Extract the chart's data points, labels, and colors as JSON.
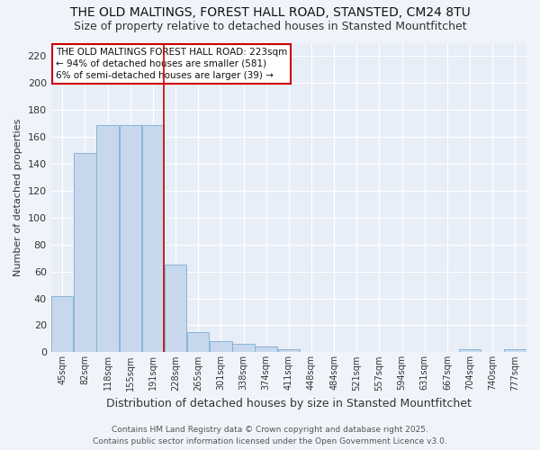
{
  "title": "THE OLD MALTINGS, FOREST HALL ROAD, STANSTED, CM24 8TU",
  "subtitle": "Size of property relative to detached houses in Stansted Mountfitchet",
  "xlabel": "Distribution of detached houses by size in Stansted Mountfitchet",
  "ylabel": "Number of detached properties",
  "categories": [
    "45sqm",
    "82sqm",
    "118sqm",
    "155sqm",
    "191sqm",
    "228sqm",
    "265sqm",
    "301sqm",
    "338sqm",
    "374sqm",
    "411sqm",
    "448sqm",
    "484sqm",
    "521sqm",
    "557sqm",
    "594sqm",
    "631sqm",
    "667sqm",
    "704sqm",
    "740sqm",
    "777sqm"
  ],
  "values": [
    42,
    148,
    169,
    169,
    169,
    65,
    15,
    8,
    6,
    4,
    2,
    0,
    0,
    0,
    0,
    0,
    0,
    0,
    2,
    0,
    2
  ],
  "bar_color": "#c8d8ec",
  "bar_edge_color": "#7aadd4",
  "red_line_x": 4.5,
  "red_line_label": "THE OLD MALTINGS FOREST HALL ROAD: 223sqm",
  "annotation_line2": "← 94% of detached houses are smaller (581)",
  "annotation_line3": "6% of semi-detached houses are larger (39) →",
  "ylim": [
    0,
    230
  ],
  "yticks": [
    0,
    20,
    40,
    60,
    80,
    100,
    120,
    140,
    160,
    180,
    200,
    220
  ],
  "bg_color": "#f0f4fa",
  "plot_bg_color": "#e8eef8",
  "grid_color": "#ffffff",
  "footer_line1": "Contains HM Land Registry data © Crown copyright and database right 2025.",
  "footer_line2": "Contains public sector information licensed under the Open Government Licence v3.0.",
  "title_fontsize": 10,
  "subtitle_fontsize": 9,
  "xlabel_fontsize": 9,
  "ylabel_fontsize": 8,
  "annotation_box_edge_color": "#cc0000",
  "red_line_color": "#cc0000"
}
